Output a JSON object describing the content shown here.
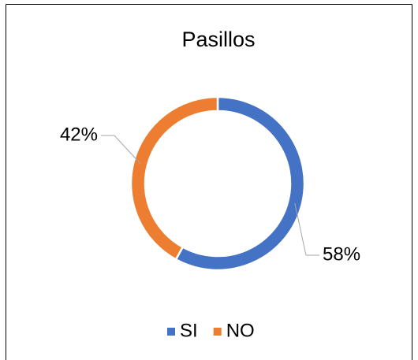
{
  "chart_data": {
    "type": "pie",
    "title": "Pasillos",
    "categories": [
      "SI",
      "NO"
    ],
    "values": [
      58,
      42
    ],
    "value_labels": [
      "58%",
      "42%"
    ],
    "colors": [
      "#4472c4",
      "#ed7d31"
    ],
    "donut": true,
    "legend": "bottom"
  }
}
